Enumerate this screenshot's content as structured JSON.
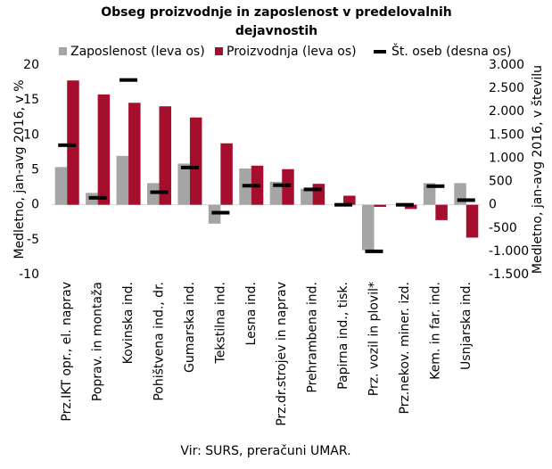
{
  "chart_data": {
    "type": "bar",
    "title": "Obseg proizvodnje in zaposlenost v predelovalnih dejavnostih",
    "y_label": "Medletno, jan-avg 2016, v %",
    "y2_label": "Medletno, jan-avg 2016, v številu",
    "source": "Vir: SURS, preračuni UMAR.",
    "categories": [
      "Prz.IKT opr., el. naprav",
      "Poprav. in montaža",
      "Kovinska ind.",
      "Pohištvena ind., dr.",
      "Gumarska ind.",
      "Tekstilna ind.",
      "Lesna ind.",
      "Prz.dr.strojev in naprav",
      "Prehrambena ind.",
      "Papirna ind., tisk.",
      "Prz. vozil in plovil*",
      "Prz.nekov. miner. izd.",
      "Kem. in far. ind.",
      "Usnjarska ind."
    ],
    "series": [
      {
        "name": "Zaposlenost (leva os)",
        "color": "#a5a5a5",
        "values": [
          5.4,
          1.7,
          7.0,
          3.1,
          5.9,
          -2.7,
          5.2,
          3.3,
          2.3,
          0,
          -6.5,
          0,
          3.1,
          3.1
        ]
      },
      {
        "name": "Proizvodnja (leva os)",
        "color": "#a50f2d",
        "values": [
          17.8,
          15.8,
          14.6,
          14.1,
          12.5,
          8.8,
          5.6,
          5.1,
          3.0,
          1.3,
          -0.3,
          -0.6,
          -2.2,
          -4.7
        ]
      },
      {
        "name": "Št. oseb (desna os)",
        "color": "#000000",
        "axis": "y2",
        "values": [
          1280,
          150,
          2680,
          270,
          800,
          -170,
          410,
          420,
          330,
          0,
          -1000,
          0,
          400,
          100
        ]
      }
    ],
    "ylim": [
      -10,
      20
    ],
    "yticks": [
      -10,
      -5,
      0,
      5,
      10,
      15,
      20
    ],
    "y2lim": [
      -1500,
      3000
    ],
    "y2ticks": [
      {
        "value": -1500,
        "label": "-1.500"
      },
      {
        "value": -1000,
        "label": "-1.000"
      },
      -500,
      0,
      500,
      {
        "value": 1000,
        "label": "1.000"
      },
      {
        "value": 1500,
        "label": "1.500"
      },
      {
        "value": 2000,
        "label": "2.000"
      },
      {
        "value": 2500,
        "label": "2.500"
      },
      {
        "value": 3000,
        "label": "3.000"
      }
    ],
    "grid": false
  }
}
